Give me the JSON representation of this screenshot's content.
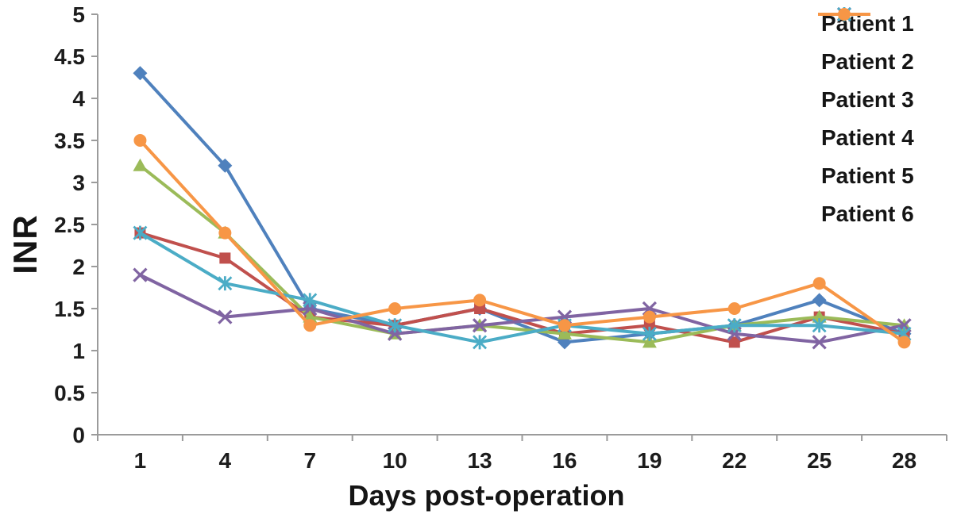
{
  "chart_data": {
    "type": "line",
    "title": "",
    "xlabel": "Days post-operation",
    "ylabel": "INR",
    "x_categories": [
      "1",
      "4",
      "7",
      "10",
      "13",
      "16",
      "19",
      "22",
      "25",
      "28"
    ],
    "ylim": [
      0,
      5
    ],
    "ytick_step": 0.5,
    "grid": false,
    "legend_position": "right-top",
    "axis_color": "#9b9b9b",
    "text_color": "#1c1c1c",
    "series": [
      {
        "name": "Patient 1",
        "color": "#4F81BD",
        "marker": "diamond",
        "values": [
          4.3,
          3.2,
          1.5,
          1.3,
          1.5,
          1.1,
          1.2,
          1.3,
          1.6,
          1.2
        ]
      },
      {
        "name": "Patient 2",
        "color": "#C0504D",
        "marker": "square",
        "values": [
          2.4,
          2.1,
          1.4,
          1.3,
          1.5,
          1.2,
          1.3,
          1.1,
          1.4,
          1.2
        ]
      },
      {
        "name": "Patient 3",
        "color": "#9BBB59",
        "marker": "triangle",
        "values": [
          3.2,
          2.4,
          1.4,
          1.2,
          1.3,
          1.2,
          1.1,
          1.3,
          1.4,
          1.3
        ]
      },
      {
        "name": "Patient 4",
        "color": "#8064A2",
        "marker": "x",
        "values": [
          1.9,
          1.4,
          1.5,
          1.2,
          1.3,
          1.4,
          1.5,
          1.2,
          1.1,
          1.3
        ]
      },
      {
        "name": "Patient 5",
        "color": "#4BACC6",
        "marker": "asterisk",
        "values": [
          2.4,
          1.8,
          1.6,
          1.3,
          1.1,
          1.3,
          1.2,
          1.3,
          1.3,
          1.2
        ]
      },
      {
        "name": "Patient 6",
        "color": "#F79646",
        "marker": "circle",
        "values": [
          3.5,
          2.4,
          1.3,
          1.5,
          1.6,
          1.3,
          1.4,
          1.5,
          1.8,
          1.1
        ]
      }
    ]
  }
}
